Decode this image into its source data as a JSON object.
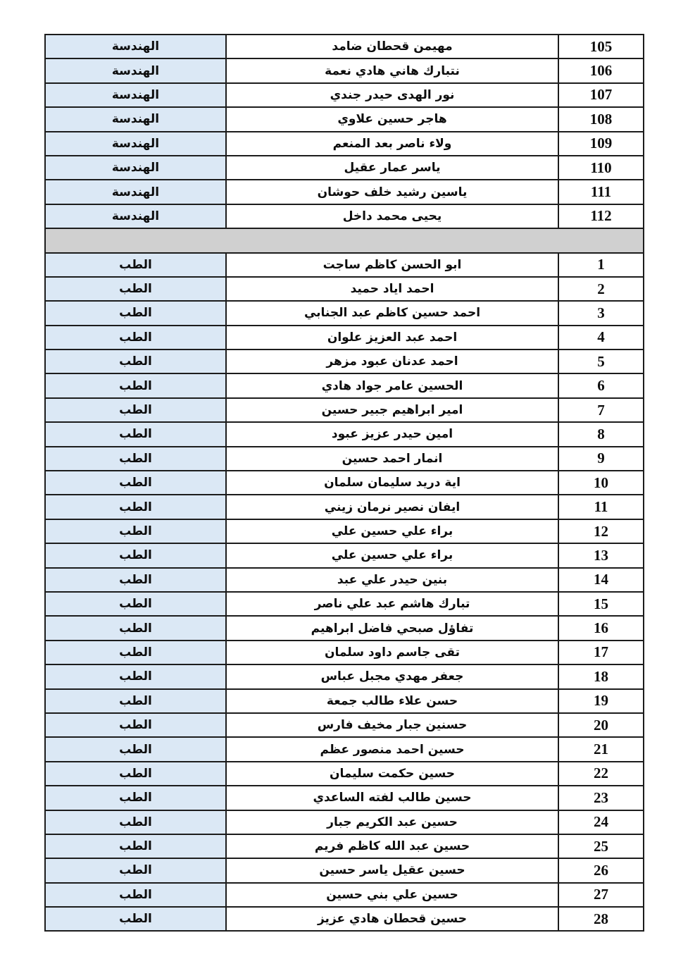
{
  "colors": {
    "department_cell_bg": "#dbe8f5",
    "separator_row_bg": "#d0d0d0",
    "border": "#1c1c1c",
    "page_background": "#ffffff"
  },
  "table": {
    "direction": "rtl",
    "groups": [
      {
        "type": "rows",
        "department_label": "الهندسة",
        "entries": [
          {
            "number": "105",
            "name": "مهيمن قحطان ضامد"
          },
          {
            "number": "106",
            "name": "نتبارك هاني هادي نعمة"
          },
          {
            "number": "107",
            "name": "نور الهدى حيدر جندي"
          },
          {
            "number": "108",
            "name": "هاجر حسين علاوي"
          },
          {
            "number": "109",
            "name": "ولاء ناصر بعد المنعم"
          },
          {
            "number": "110",
            "name": "ياسر عمار عقيل"
          },
          {
            "number": "111",
            "name": "ياسين رشيد خلف حوشان"
          },
          {
            "number": "112",
            "name": "يحيى محمد داخل"
          }
        ]
      },
      {
        "type": "separator"
      },
      {
        "type": "rows",
        "department_label": "الطب",
        "entries": [
          {
            "number": "1",
            "name": "ابو الحسن كاظم ساجت"
          },
          {
            "number": "2",
            "name": "احمد اياد حميد"
          },
          {
            "number": "3",
            "name": "احمد حسين كاظم عبد الجنابي"
          },
          {
            "number": "4",
            "name": "احمد عبد العزيز علوان"
          },
          {
            "number": "5",
            "name": "احمد عدنان عبود مزهر"
          },
          {
            "number": "6",
            "name": "الحسين عامر جواد هادي"
          },
          {
            "number": "7",
            "name": "امير ابراهيم جبير حسين"
          },
          {
            "number": "8",
            "name": "امين حيدر عزيز عبود"
          },
          {
            "number": "9",
            "name": "انمار احمد حسين"
          },
          {
            "number": "10",
            "name": "اية دريد سليمان سلمان"
          },
          {
            "number": "11",
            "name": "ايفان نصير نرمان زيني"
          },
          {
            "number": "12",
            "name": "براء علي حسين علي"
          },
          {
            "number": "13",
            "name": "براء علي حسين علي"
          },
          {
            "number": "14",
            "name": "بنين حيدر علي عبد"
          },
          {
            "number": "15",
            "name": "تبارك هاشم عبد علي ناصر"
          },
          {
            "number": "16",
            "name": "تفاؤل صبحي فاضل ابراهيم"
          },
          {
            "number": "17",
            "name": "تقى جاسم داود سلمان"
          },
          {
            "number": "18",
            "name": "جعفر مهدي مجبل عباس"
          },
          {
            "number": "19",
            "name": "حسن علاء طالب جمعة"
          },
          {
            "number": "20",
            "name": "حسنين جبار مخيف فارس"
          },
          {
            "number": "21",
            "name": "حسين احمد منصور عظم"
          },
          {
            "number": "22",
            "name": "حسين حكمت سليمان"
          },
          {
            "number": "23",
            "name": "حسين طالب لفته الساعدي"
          },
          {
            "number": "24",
            "name": "حسين عبد الكريم جبار"
          },
          {
            "number": "25",
            "name": "حسين عبد الله كاظم فريم"
          },
          {
            "number": "26",
            "name": "حسين عقيل ياسر حسين"
          },
          {
            "number": "27",
            "name": "حسين علي بني حسين"
          },
          {
            "number": "28",
            "name": "حسين قحطان هادي عزيز"
          }
        ]
      }
    ]
  }
}
